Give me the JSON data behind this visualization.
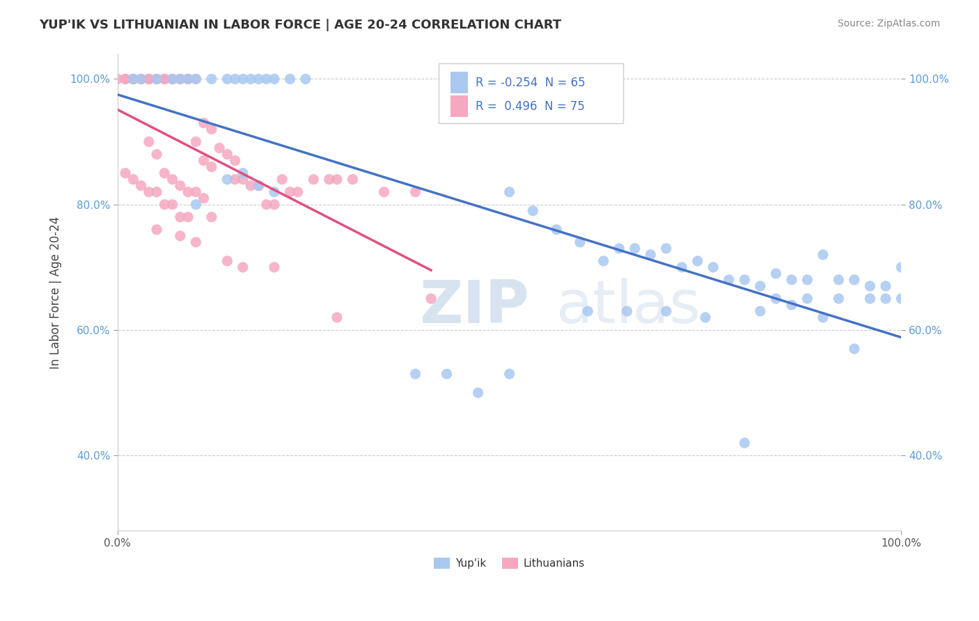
{
  "title": "YUP'IK VS LITHUANIAN IN LABOR FORCE | AGE 20-24 CORRELATION CHART",
  "source_text": "Source: ZipAtlas.com",
  "ylabel": "In Labor Force | Age 20-24",
  "xlim": [
    0.0,
    1.0
  ],
  "ylim": [
    0.28,
    1.04
  ],
  "blue_color": "#A8C8F0",
  "pink_color": "#F5A8C0",
  "blue_line_color": "#4472C4",
  "pink_line_color": "#E05080",
  "legend_blue_label": "Yup'ik",
  "legend_pink_label": "Lithuanians",
  "R_blue": "-0.254",
  "N_blue": "65",
  "R_pink": "0.496",
  "N_pink": "75",
  "watermark_zip": "ZIP",
  "watermark_atlas": "atlas",
  "blue_x": [
    0.02,
    0.03,
    0.05,
    0.07,
    0.08,
    0.09,
    0.1,
    0.12,
    0.14,
    0.15,
    0.16,
    0.17,
    0.18,
    0.19,
    0.2,
    0.22,
    0.24,
    0.5,
    0.53,
    0.56,
    0.59,
    0.62,
    0.64,
    0.66,
    0.68,
    0.7,
    0.72,
    0.74,
    0.76,
    0.78,
    0.8,
    0.82,
    0.84,
    0.86,
    0.88,
    0.9,
    0.92,
    0.94,
    0.96,
    0.98,
    1.0,
    0.82,
    0.86,
    0.9,
    0.94,
    0.98,
    0.84,
    0.88,
    0.92,
    0.96,
    1.0,
    0.6,
    0.65,
    0.7,
    0.75,
    0.38,
    0.42,
    0.46,
    0.14,
    0.16,
    0.18,
    0.2,
    0.5,
    0.8,
    0.1
  ],
  "blue_y": [
    1.0,
    1.0,
    1.0,
    1.0,
    1.0,
    1.0,
    1.0,
    1.0,
    1.0,
    1.0,
    1.0,
    1.0,
    1.0,
    1.0,
    1.0,
    1.0,
    1.0,
    0.82,
    0.79,
    0.76,
    0.74,
    0.71,
    0.73,
    0.73,
    0.72,
    0.73,
    0.7,
    0.71,
    0.7,
    0.68,
    0.68,
    0.67,
    0.69,
    0.68,
    0.68,
    0.72,
    0.68,
    0.68,
    0.67,
    0.67,
    0.7,
    0.63,
    0.64,
    0.62,
    0.57,
    0.65,
    0.65,
    0.65,
    0.65,
    0.65,
    0.65,
    0.63,
    0.63,
    0.63,
    0.62,
    0.53,
    0.53,
    0.5,
    0.84,
    0.85,
    0.83,
    0.82,
    0.53,
    0.42,
    0.8
  ],
  "pink_x": [
    0.0,
    0.01,
    0.01,
    0.02,
    0.02,
    0.02,
    0.02,
    0.03,
    0.03,
    0.03,
    0.04,
    0.04,
    0.04,
    0.05,
    0.05,
    0.05,
    0.06,
    0.06,
    0.07,
    0.07,
    0.07,
    0.08,
    0.08,
    0.09,
    0.09,
    0.1,
    0.1,
    0.11,
    0.11,
    0.12,
    0.12,
    0.13,
    0.14,
    0.15,
    0.15,
    0.16,
    0.17,
    0.18,
    0.19,
    0.2,
    0.21,
    0.22,
    0.23,
    0.25,
    0.27,
    0.3,
    0.34,
    0.38,
    0.28,
    0.04,
    0.05,
    0.06,
    0.07,
    0.08,
    0.09,
    0.1,
    0.11,
    0.12,
    0.01,
    0.02,
    0.03,
    0.04,
    0.05,
    0.06,
    0.07,
    0.08,
    0.09,
    0.28,
    0.05,
    0.08,
    0.1,
    0.14,
    0.16,
    0.2,
    0.4
  ],
  "pink_y": [
    1.0,
    1.0,
    1.0,
    1.0,
    1.0,
    1.0,
    1.0,
    1.0,
    1.0,
    1.0,
    1.0,
    1.0,
    1.0,
    1.0,
    1.0,
    1.0,
    1.0,
    1.0,
    1.0,
    1.0,
    1.0,
    1.0,
    1.0,
    1.0,
    1.0,
    1.0,
    0.9,
    0.93,
    0.87,
    0.92,
    0.86,
    0.89,
    0.88,
    0.87,
    0.84,
    0.84,
    0.83,
    0.83,
    0.8,
    0.8,
    0.84,
    0.82,
    0.82,
    0.84,
    0.84,
    0.84,
    0.82,
    0.82,
    0.84,
    0.9,
    0.88,
    0.85,
    0.84,
    0.83,
    0.82,
    0.82,
    0.81,
    0.78,
    0.85,
    0.84,
    0.83,
    0.82,
    0.82,
    0.8,
    0.8,
    0.78,
    0.78,
    0.62,
    0.76,
    0.75,
    0.74,
    0.71,
    0.7,
    0.7,
    0.65
  ]
}
